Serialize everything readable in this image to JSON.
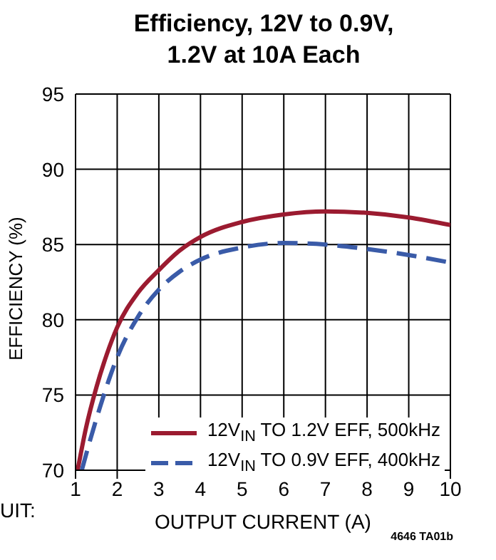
{
  "chart_data": {
    "type": "line",
    "title": "Efficiency, 12V to 0.9V,\n1.2V at 10A Each",
    "xlabel": "OUTPUT CURRENT (A)",
    "ylabel": "EFFICIENCY (%)",
    "xlim": [
      1,
      10
    ],
    "xticks": [
      1,
      2,
      3,
      4,
      5,
      6,
      7,
      8,
      9,
      10
    ],
    "ylim": [
      70,
      95
    ],
    "yticks": [
      70,
      75,
      80,
      85,
      90,
      95
    ],
    "grid": true,
    "legend": "bottom right",
    "series": [
      {
        "name": "12V$_{IN}$ TO 1.2V EFF, 500kHz",
        "color": "#9b1b30",
        "line_style": "solid",
        "x": [
          1.05,
          1.25,
          1.5,
          1.75,
          2,
          2.5,
          3,
          3.5,
          4,
          5,
          6,
          7,
          8,
          9,
          10
        ],
        "values": [
          70,
          72.8,
          75.5,
          77.7,
          79.5,
          81.8,
          83.3,
          84.6,
          85.5,
          86.5,
          87,
          87.2,
          87.1,
          86.8,
          86.3
        ]
      },
      {
        "name": "12V$_{IN}$ TO 0.9V EFF, 400kHz",
        "color": "#3a5ba8",
        "line_style": "dashed",
        "x": [
          1.15,
          1.35,
          1.6,
          1.8,
          2,
          2.5,
          3,
          3.5,
          4,
          5,
          6,
          7,
          8,
          9,
          10
        ],
        "values": [
          70,
          72,
          74.3,
          76,
          77.5,
          80.2,
          82,
          83.2,
          84,
          84.8,
          85.1,
          85,
          84.7,
          84.3,
          83.8
        ]
      }
    ],
    "annotations": [
      "4646 TA01b",
      "UIT:"
    ]
  }
}
